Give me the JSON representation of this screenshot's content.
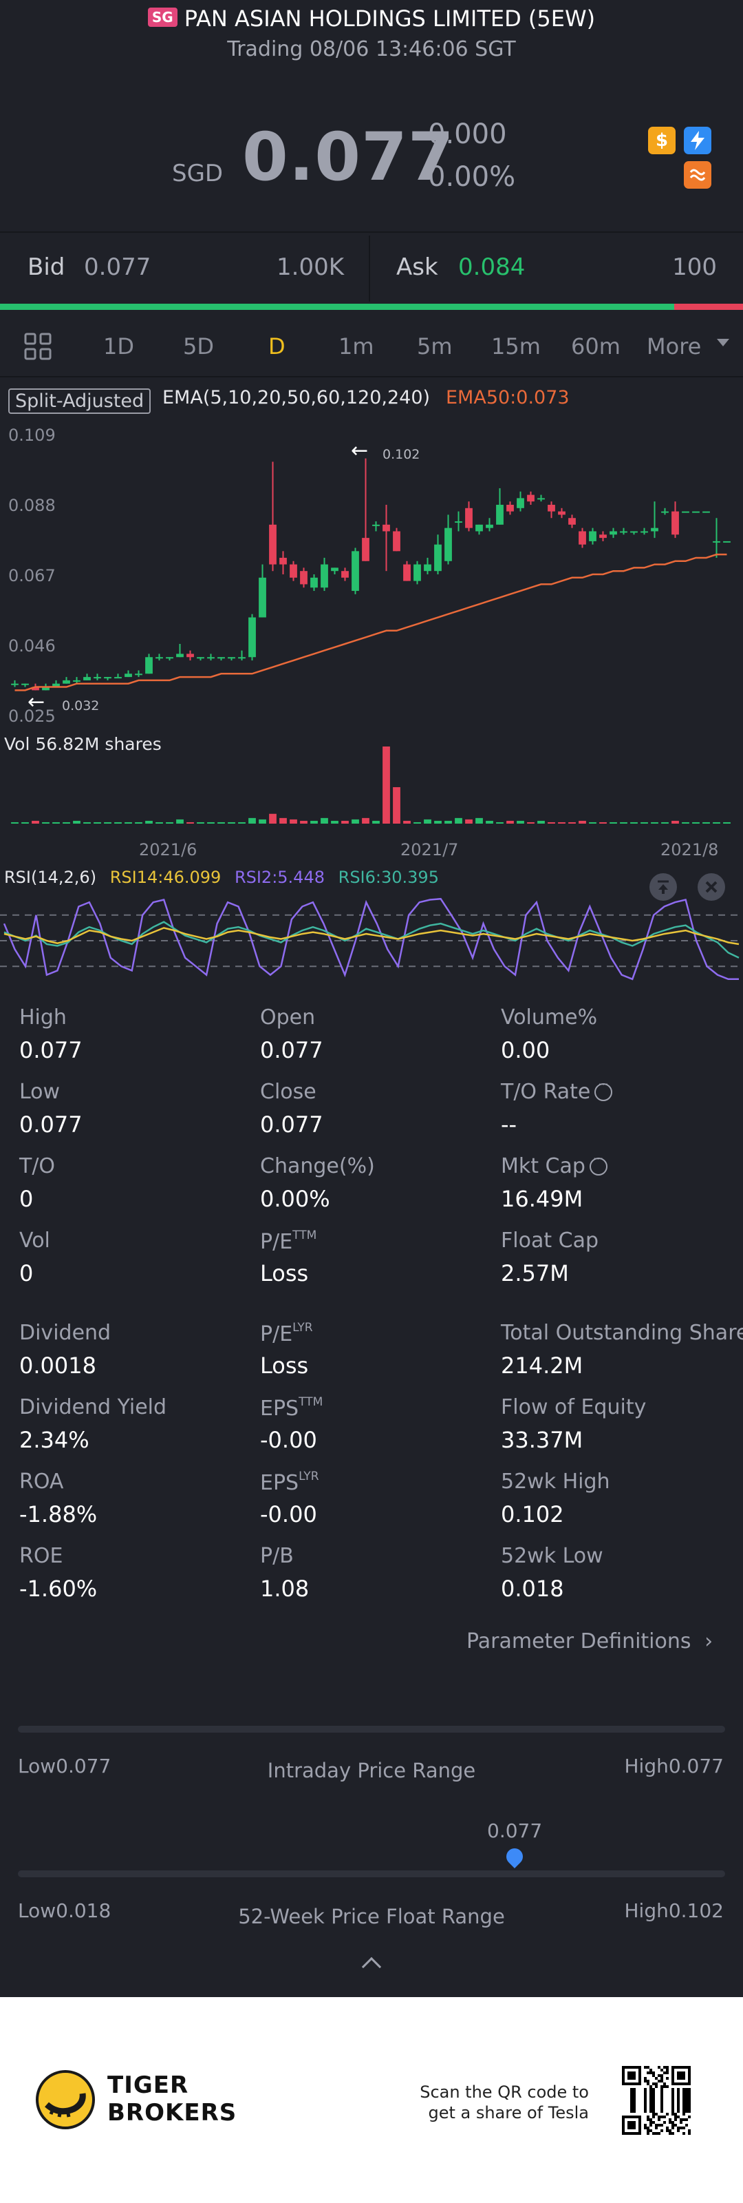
{
  "header": {
    "market_badge": "SG",
    "title": "PAN ASIAN HOLDINGS LIMITED (5EW)",
    "subtitle": "Trading 08/06 13:46:06 SGT"
  },
  "quote": {
    "currency": "SGD",
    "price": "0.077",
    "change": "0.000",
    "change_pct": "0.00%",
    "icons": [
      "dollar-icon",
      "lightning-icon",
      "swap-icon"
    ]
  },
  "bidask": {
    "bid_label": "Bid",
    "bid_price": "0.077",
    "bid_size": "1.00K",
    "ask_label": "Ask",
    "ask_price": "0.084",
    "ask_size": "100",
    "bid_ratio": 0.907
  },
  "tabs": {
    "items": [
      "1D",
      "5D",
      "D",
      "1m",
      "5m",
      "15m",
      "60m",
      "More"
    ],
    "active": "D"
  },
  "chart": {
    "split_label": "Split-Adjusted",
    "ema_label": "EMA(5,10,20,50,60,120,240)",
    "ema50_label": "EMA50:0.073",
    "y_ticks": [
      "0.109",
      "0.088",
      "0.067",
      "0.046",
      "0.025"
    ],
    "max_annot": "0.102",
    "min_annot": "0.032",
    "vol_label": "Vol   56.82M shares",
    "x_ticks": [
      "2021/6",
      "2021/7",
      "2021/8"
    ],
    "rsi_label": "RSI(14,2,6)",
    "rsi14": "RSI14:46.099",
    "rsi2": "RSI2:5.448",
    "rsi6": "RSI6:30.395"
  },
  "chart_data": {
    "type": "candlestick",
    "ylim": [
      0.025,
      0.109
    ],
    "y_ticks": [
      0.109,
      0.088,
      0.067,
      0.046,
      0.025
    ],
    "x_ticks": [
      "2021/6",
      "2021/7",
      "2021/8"
    ],
    "candles": [
      {
        "o": 0.034,
        "c": 0.034,
        "h": 0.035,
        "l": 0.033
      },
      {
        "o": 0.034,
        "c": 0.034,
        "h": 0.034,
        "l": 0.033
      },
      {
        "o": 0.033,
        "c": 0.032,
        "h": 0.034,
        "l": 0.032
      },
      {
        "o": 0.032,
        "c": 0.033,
        "h": 0.034,
        "l": 0.032
      },
      {
        "o": 0.033,
        "c": 0.034,
        "h": 0.035,
        "l": 0.033
      },
      {
        "o": 0.034,
        "c": 0.035,
        "h": 0.036,
        "l": 0.034
      },
      {
        "o": 0.035,
        "c": 0.035,
        "h": 0.036,
        "l": 0.034
      },
      {
        "o": 0.035,
        "c": 0.036,
        "h": 0.037,
        "l": 0.035
      },
      {
        "o": 0.036,
        "c": 0.036,
        "h": 0.037,
        "l": 0.035
      },
      {
        "o": 0.036,
        "c": 0.036,
        "h": 0.036,
        "l": 0.035
      },
      {
        "o": 0.036,
        "c": 0.036,
        "h": 0.037,
        "l": 0.036
      },
      {
        "o": 0.036,
        "c": 0.037,
        "h": 0.038,
        "l": 0.036
      },
      {
        "o": 0.037,
        "c": 0.037,
        "h": 0.038,
        "l": 0.036
      },
      {
        "o": 0.037,
        "c": 0.042,
        "h": 0.043,
        "l": 0.037
      },
      {
        "o": 0.042,
        "c": 0.042,
        "h": 0.043,
        "l": 0.041
      },
      {
        "o": 0.042,
        "c": 0.042,
        "h": 0.042,
        "l": 0.041
      },
      {
        "o": 0.042,
        "c": 0.043,
        "h": 0.046,
        "l": 0.042
      },
      {
        "o": 0.043,
        "c": 0.042,
        "h": 0.044,
        "l": 0.041
      },
      {
        "o": 0.042,
        "c": 0.042,
        "h": 0.042,
        "l": 0.041
      },
      {
        "o": 0.042,
        "c": 0.042,
        "h": 0.043,
        "l": 0.041
      },
      {
        "o": 0.042,
        "c": 0.042,
        "h": 0.042,
        "l": 0.041
      },
      {
        "o": 0.042,
        "c": 0.042,
        "h": 0.042,
        "l": 0.041
      },
      {
        "o": 0.042,
        "c": 0.042,
        "h": 0.044,
        "l": 0.041
      },
      {
        "o": 0.042,
        "c": 0.054,
        "h": 0.055,
        "l": 0.041
      },
      {
        "o": 0.054,
        "c": 0.066,
        "h": 0.07,
        "l": 0.054
      },
      {
        "o": 0.082,
        "c": 0.07,
        "h": 0.101,
        "l": 0.068
      },
      {
        "o": 0.072,
        "c": 0.07,
        "h": 0.074,
        "l": 0.067
      },
      {
        "o": 0.07,
        "c": 0.066,
        "h": 0.071,
        "l": 0.065
      },
      {
        "o": 0.068,
        "c": 0.064,
        "h": 0.069,
        "l": 0.063
      },
      {
        "o": 0.063,
        "c": 0.066,
        "h": 0.067,
        "l": 0.062
      },
      {
        "o": 0.063,
        "c": 0.07,
        "h": 0.072,
        "l": 0.062
      },
      {
        "o": 0.068,
        "c": 0.069,
        "h": 0.069,
        "l": 0.067
      },
      {
        "o": 0.068,
        "c": 0.066,
        "h": 0.069,
        "l": 0.065
      },
      {
        "o": 0.062,
        "c": 0.074,
        "h": 0.075,
        "l": 0.061
      },
      {
        "o": 0.078,
        "c": 0.071,
        "h": 0.102,
        "l": 0.071
      },
      {
        "o": 0.082,
        "c": 0.082,
        "h": 0.083,
        "l": 0.08
      },
      {
        "o": 0.082,
        "c": 0.08,
        "h": 0.088,
        "l": 0.068
      },
      {
        "o": 0.08,
        "c": 0.074,
        "h": 0.081,
        "l": 0.074
      },
      {
        "o": 0.07,
        "c": 0.065,
        "h": 0.071,
        "l": 0.065
      },
      {
        "o": 0.065,
        "c": 0.07,
        "h": 0.071,
        "l": 0.064
      },
      {
        "o": 0.068,
        "c": 0.07,
        "h": 0.072,
        "l": 0.067
      },
      {
        "o": 0.068,
        "c": 0.076,
        "h": 0.079,
        "l": 0.067
      },
      {
        "o": 0.071,
        "c": 0.081,
        "h": 0.085,
        "l": 0.07
      },
      {
        "o": 0.083,
        "c": 0.083,
        "h": 0.086,
        "l": 0.08
      },
      {
        "o": 0.087,
        "c": 0.081,
        "h": 0.089,
        "l": 0.08
      },
      {
        "o": 0.08,
        "c": 0.082,
        "h": 0.082,
        "l": 0.079
      },
      {
        "o": 0.081,
        "c": 0.082,
        "h": 0.084,
        "l": 0.08
      },
      {
        "o": 0.082,
        "c": 0.088,
        "h": 0.093,
        "l": 0.082
      },
      {
        "o": 0.088,
        "c": 0.086,
        "h": 0.089,
        "l": 0.085
      },
      {
        "o": 0.087,
        "c": 0.09,
        "h": 0.092,
        "l": 0.086
      },
      {
        "o": 0.091,
        "c": 0.089,
        "h": 0.092,
        "l": 0.088
      },
      {
        "o": 0.09,
        "c": 0.09,
        "h": 0.091,
        "l": 0.089
      },
      {
        "o": 0.088,
        "c": 0.086,
        "h": 0.089,
        "l": 0.084
      },
      {
        "o": 0.086,
        "c": 0.085,
        "h": 0.087,
        "l": 0.084
      },
      {
        "o": 0.084,
        "c": 0.082,
        "h": 0.085,
        "l": 0.081
      },
      {
        "o": 0.08,
        "c": 0.076,
        "h": 0.081,
        "l": 0.075
      },
      {
        "o": 0.077,
        "c": 0.08,
        "h": 0.081,
        "l": 0.076
      },
      {
        "o": 0.079,
        "c": 0.078,
        "h": 0.08,
        "l": 0.077
      },
      {
        "o": 0.079,
        "c": 0.08,
        "h": 0.081,
        "l": 0.078
      },
      {
        "o": 0.08,
        "c": 0.08,
        "h": 0.081,
        "l": 0.079
      },
      {
        "o": 0.08,
        "c": 0.08,
        "h": 0.08,
        "l": 0.079
      },
      {
        "o": 0.08,
        "c": 0.08,
        "h": 0.081,
        "l": 0.079
      },
      {
        "o": 0.08,
        "c": 0.081,
        "h": 0.089,
        "l": 0.078
      },
      {
        "o": 0.086,
        "c": 0.086,
        "h": 0.087,
        "l": 0.085
      },
      {
        "o": 0.086,
        "c": 0.079,
        "h": 0.089,
        "l": 0.078
      },
      {
        "o": 0.086,
        "c": 0.086,
        "h": 0.086,
        "l": 0.086
      },
      {
        "o": 0.086,
        "c": 0.086,
        "h": 0.086,
        "l": 0.086
      },
      {
        "o": 0.086,
        "c": 0.086,
        "h": 0.086,
        "l": 0.086
      },
      {
        "o": 0.077,
        "c": 0.077,
        "h": 0.084,
        "l": 0.072
      },
      {
        "o": 0.077,
        "c": 0.077,
        "h": 0.077,
        "l": 0.077
      }
    ],
    "ema50": [
      0.032,
      0.032,
      0.033,
      0.033,
      0.033,
      0.033,
      0.034,
      0.034,
      0.034,
      0.034,
      0.034,
      0.034,
      0.035,
      0.035,
      0.035,
      0.035,
      0.036,
      0.036,
      0.036,
      0.036,
      0.037,
      0.037,
      0.037,
      0.037,
      0.038,
      0.039,
      0.04,
      0.041,
      0.042,
      0.043,
      0.044,
      0.045,
      0.046,
      0.047,
      0.048,
      0.049,
      0.05,
      0.05,
      0.051,
      0.052,
      0.053,
      0.054,
      0.055,
      0.056,
      0.057,
      0.058,
      0.059,
      0.06,
      0.061,
      0.062,
      0.063,
      0.064,
      0.064,
      0.065,
      0.066,
      0.066,
      0.067,
      0.067,
      0.068,
      0.068,
      0.069,
      0.069,
      0.07,
      0.07,
      0.071,
      0.071,
      0.072,
      0.072,
      0.073,
      0.073
    ],
    "volume": [
      1,
      1,
      2,
      1,
      1,
      1,
      2,
      1,
      1,
      1,
      1,
      1,
      1,
      2,
      1,
      1,
      3,
      1,
      1,
      1,
      1,
      1,
      1,
      4,
      3,
      7,
      4,
      3,
      2,
      2,
      4,
      2,
      2,
      3,
      4,
      2,
      55,
      26,
      2,
      1,
      3,
      2,
      2,
      4,
      3,
      4,
      2,
      1,
      2,
      2,
      1,
      2,
      1,
      1,
      1,
      2,
      1,
      1,
      1,
      1,
      1,
      1,
      1,
      1,
      2,
      1,
      1,
      1,
      1,
      1
    ],
    "rsi14": [
      58,
      55,
      52,
      55,
      50,
      47,
      50,
      56,
      62,
      60,
      55,
      52,
      50,
      55,
      60,
      65,
      62,
      58,
      55,
      52,
      55,
      60,
      62,
      60,
      57,
      54,
      52,
      55,
      58,
      60,
      58,
      55,
      52,
      55,
      58,
      56,
      54,
      52,
      55,
      58,
      60,
      62,
      60,
      58,
      56,
      58,
      56,
      54,
      52,
      55,
      58,
      56,
      54,
      52,
      55,
      58,
      56,
      54,
      52,
      50,
      52,
      55,
      58,
      60,
      62,
      58,
      55,
      52,
      48,
      46
    ],
    "rsi6": [
      60,
      55,
      50,
      56,
      46,
      44,
      48,
      60,
      66,
      62,
      55,
      50,
      46,
      58,
      66,
      72,
      64,
      56,
      52,
      48,
      56,
      64,
      66,
      62,
      56,
      52,
      48,
      56,
      62,
      66,
      62,
      56,
      50,
      56,
      64,
      60,
      56,
      52,
      58,
      64,
      68,
      70,
      66,
      62,
      58,
      62,
      58,
      54,
      50,
      58,
      64,
      58,
      54,
      50,
      56,
      62,
      58,
      54,
      48,
      44,
      50,
      58,
      62,
      66,
      68,
      60,
      54,
      48,
      36,
      30
    ],
    "rsi2": [
      70,
      40,
      20,
      80,
      10,
      15,
      50,
      90,
      95,
      70,
      30,
      20,
      15,
      80,
      95,
      98,
      60,
      30,
      20,
      10,
      70,
      95,
      90,
      60,
      20,
      10,
      20,
      75,
      90,
      95,
      70,
      40,
      10,
      50,
      95,
      70,
      40,
      20,
      80,
      95,
      98,
      99,
      80,
      60,
      30,
      70,
      40,
      20,
      10,
      80,
      95,
      50,
      30,
      15,
      60,
      90,
      60,
      30,
      10,
      5,
      40,
      80,
      90,
      95,
      98,
      50,
      20,
      10,
      5,
      5
    ]
  },
  "stats": [
    {
      "label": "High",
      "value": "0.077"
    },
    {
      "label": "Open",
      "value": "0.077"
    },
    {
      "label": "Volume%",
      "value": "0.00"
    },
    {
      "label": "Low",
      "value": "0.077"
    },
    {
      "label": "Close",
      "value": "0.077"
    },
    {
      "label": "T/O Rate",
      "value": "--",
      "info": true
    },
    {
      "label": "T/O",
      "value": "0"
    },
    {
      "label": "Change(%)",
      "value": "0.00%"
    },
    {
      "label": "Mkt Cap",
      "value": "16.49M",
      "info": true
    },
    {
      "label": "Vol",
      "value": "0"
    },
    {
      "label": "P/E",
      "sup": "TTM",
      "value": "Loss"
    },
    {
      "label": "Float Cap",
      "value": "2.57M"
    },
    {
      "label": "Dividend",
      "value": "0.0018"
    },
    {
      "label": "P/E",
      "sup": "LYR",
      "value": "Loss"
    },
    {
      "label": "Total Outstanding Shares",
      "value": "214.2M"
    },
    {
      "label": "Dividend Yield",
      "value": "2.34%"
    },
    {
      "label": "EPS",
      "sup": "TTM",
      "value": "-0.00"
    },
    {
      "label": "Flow of Equity",
      "value": "33.37M"
    },
    {
      "label": "ROA",
      "value": "-1.88%"
    },
    {
      "label": "EPS",
      "sup": "LYR",
      "value": "-0.00"
    },
    {
      "label": "52wk High",
      "value": "0.102"
    },
    {
      "label": "ROE",
      "value": "-1.60%"
    },
    {
      "label": "P/B",
      "value": "1.08"
    },
    {
      "label": "52wk Low",
      "value": "0.018"
    }
  ],
  "param_defs": "Parameter Definitions",
  "intraday": {
    "low": "Low0.077",
    "title": "Intraday Price Range",
    "high": "High0.077"
  },
  "week52": {
    "marker": "0.077",
    "low": "Low0.018",
    "title": "52-Week Price Float Range",
    "high": "High0.102",
    "marker_position": 0.71
  },
  "footer": {
    "brand_line1": "TIGER",
    "brand_line2": "BROKERS",
    "scan_line1": "Scan the QR code to",
    "scan_line2": "get a share of Tesla"
  },
  "colors": {
    "background": "#1f2128",
    "up": "#27c06e",
    "down": "#e6425a",
    "ema50": "#ea6a3a",
    "rsi14": "#e9c43a",
    "rsi2": "#8e6cf0",
    "rsi6": "#3fb6a0",
    "active_tab": "#f0bf1e"
  }
}
